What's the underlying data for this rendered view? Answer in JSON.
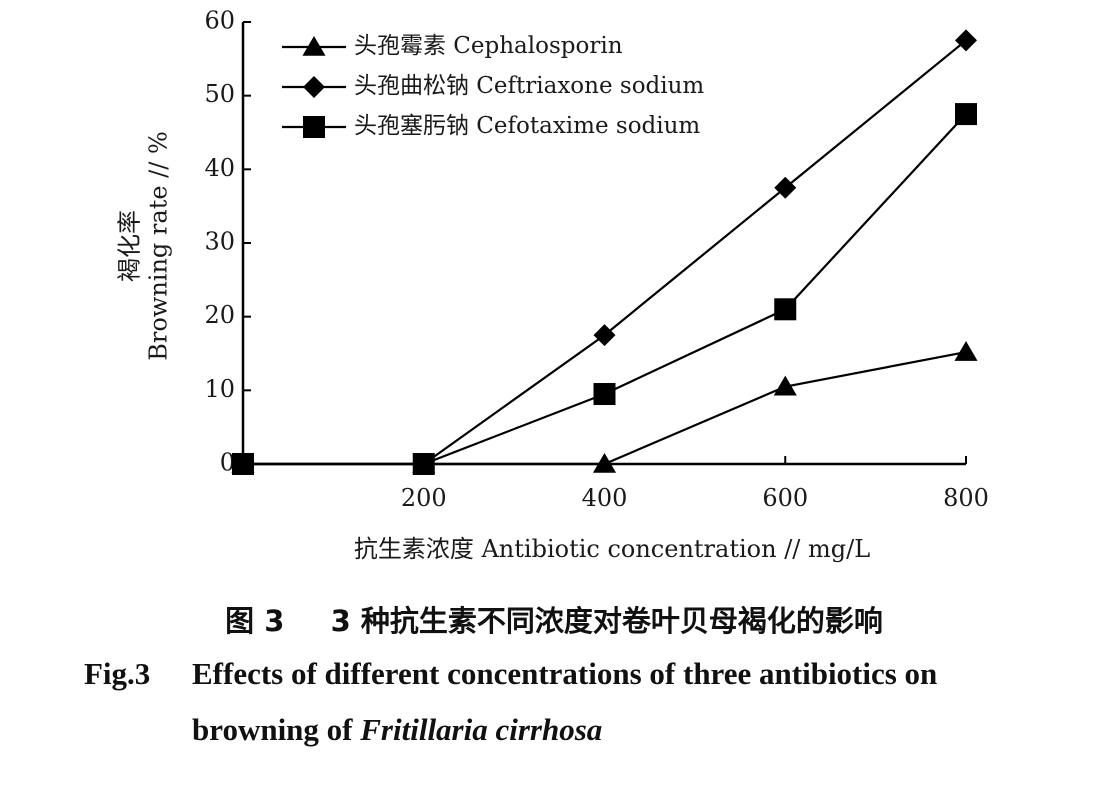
{
  "chart_data": {
    "type": "line",
    "title": "",
    "xlabel": "抗生素浓度 Antibiotic concentration // mg/L",
    "ylabel_cn": "褐化率",
    "ylabel_en": "Browning rate // %",
    "x": [
      0,
      200,
      400,
      600,
      800
    ],
    "x_tick_labels": [
      "200",
      "400",
      "600",
      "800"
    ],
    "y_tick_labels": [
      "0",
      "10",
      "20",
      "30",
      "40",
      "50",
      "60"
    ],
    "xlim": [
      0,
      800
    ],
    "ylim": [
      0,
      60
    ],
    "grid": false,
    "legend_position": "top-left",
    "series": [
      {
        "name": "头孢霉素 Cephalosporin",
        "marker": "triangle",
        "values": [
          0,
          0,
          0,
          10.5,
          15.2
        ]
      },
      {
        "name": "头孢曲松钠 Ceftriaxone sodium",
        "marker": "diamond",
        "values": [
          0,
          0,
          17.5,
          37.5,
          57.5
        ]
      },
      {
        "name": "头孢塞肟钠 Cefotaxime sodium",
        "marker": "square",
        "values": [
          0,
          0,
          9.5,
          21.0,
          47.5
        ]
      }
    ]
  },
  "caption": {
    "cn_label": "图 3",
    "cn_text": "3 种抗生素不同浓度对卷叶贝母褐化的影响",
    "en_label": "Fig.3",
    "en_line1": "Effects of different concentrations of three antibiotics on",
    "en_line2_prefix": "browning of ",
    "en_line2_species": "Fritillaria cirrhosa"
  }
}
